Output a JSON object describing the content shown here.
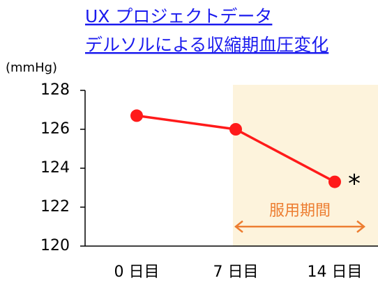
{
  "chart_data": {
    "type": "line",
    "title": [
      "UX プロジェクトデータ",
      "デルソルによる収縮期血圧変化"
    ],
    "y_label": "(mmHg)",
    "categories": [
      "0 日目",
      "7 日目",
      "14 日目"
    ],
    "series": [
      {
        "name": "収縮期血圧",
        "color": "#ff1a1a",
        "values": [
          126.7,
          126.0,
          123.3
        ]
      }
    ],
    "ylim": [
      120,
      128
    ],
    "yticks": [
      120,
      122,
      124,
      126,
      128
    ],
    "annotations": {
      "asterisk": "*",
      "period": "服用期間"
    }
  }
}
